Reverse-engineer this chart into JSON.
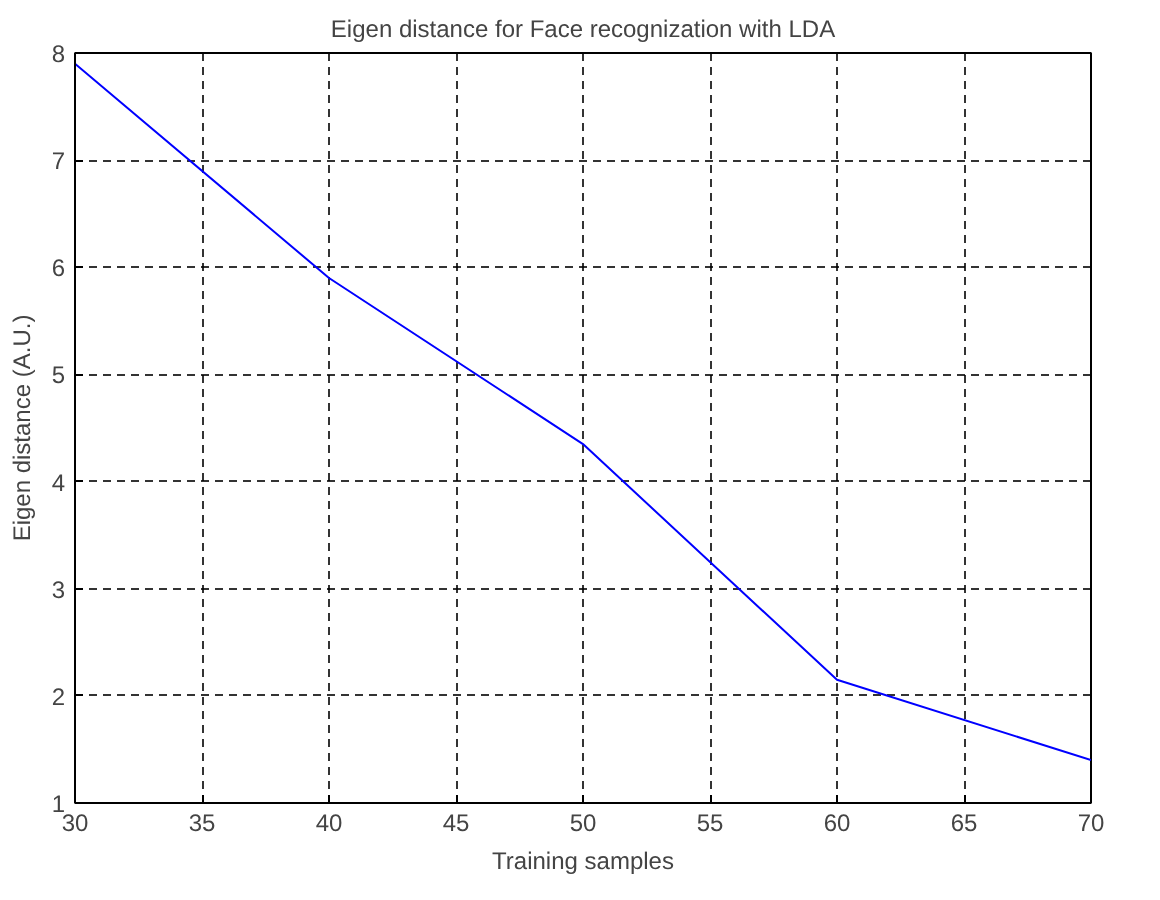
{
  "chart_data": {
    "type": "line",
    "title": "Eigen distance for Face recognization with LDA",
    "xlabel": "Training samples",
    "ylabel": "Eigen distance (A.U.)",
    "x": [
      30,
      40,
      50,
      60,
      70
    ],
    "series": [
      {
        "color": "#0000ff",
        "values": [
          7.9,
          5.9,
          4.35,
          2.15,
          1.4
        ]
      }
    ],
    "xlim": [
      30,
      70
    ],
    "ylim": [
      1,
      8
    ],
    "xticks": [
      30,
      35,
      40,
      45,
      50,
      55,
      60,
      65,
      70
    ],
    "yticks": [
      1,
      2,
      3,
      4,
      5,
      6,
      7,
      8
    ],
    "grid": true,
    "line_style": "solid",
    "marker": "none"
  }
}
